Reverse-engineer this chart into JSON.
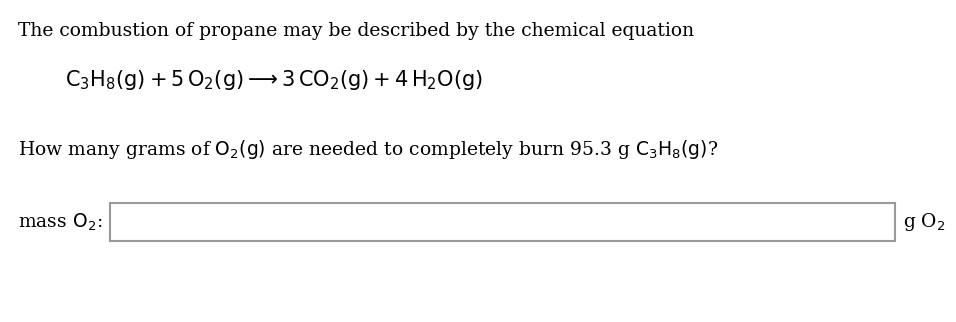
{
  "background_color": "#ffffff",
  "line1": "The combustion of propane may be described by the chemical equation",
  "equation": "$\\mathrm{C_3H_8(g) + 5\\,O_2(g) \\longrightarrow 3\\,CO_2(g) + 4\\,H_2O(g)}$",
  "line3": "How many grams of $\\mathrm{O_2(g)}$ are needed to completely burn 95.3 g $\\mathrm{C_3H_8(g)}$?",
  "label_text": "mass $\\mathrm{O_2}$:",
  "unit_text": "g O$_2$",
  "font_size": 13.5,
  "text_color": "#000000",
  "box_edge_color": "#999999",
  "box_face_color": "#ffffff",
  "fig_width": 9.56,
  "fig_height": 3.22,
  "dpi": 100
}
